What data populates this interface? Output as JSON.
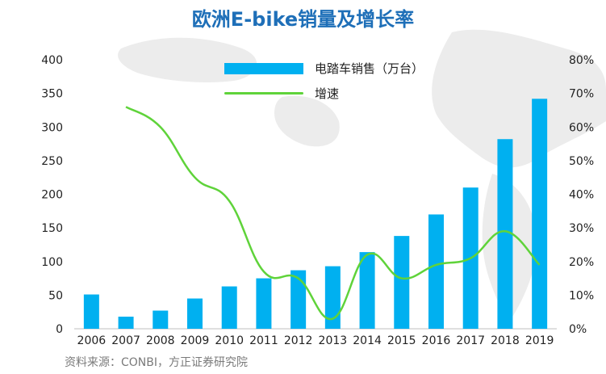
{
  "title": "欧洲E-bike销量及增长率",
  "source": "资料来源：CONBI，方正证券研究院",
  "chart_data": {
    "type": "bar",
    "categories": [
      "2006",
      "2007",
      "2008",
      "2009",
      "2010",
      "2011",
      "2012",
      "2013",
      "2014",
      "2015",
      "2016",
      "2017",
      "2018",
      "2019"
    ],
    "series": [
      {
        "name": "电踏车销售（万台）",
        "type": "bar",
        "axis": "left",
        "color": "#00b0f0",
        "values": [
          51,
          18,
          27,
          45,
          63,
          75,
          87,
          93,
          114,
          138,
          170,
          210,
          282,
          342
        ]
      },
      {
        "name": "增速",
        "type": "line",
        "axis": "right",
        "color": "#5fd33a",
        "values": [
          null,
          0.66,
          0.6,
          0.45,
          0.38,
          0.17,
          0.15,
          0.03,
          0.22,
          0.15,
          0.19,
          0.21,
          0.29,
          0.19
        ]
      }
    ],
    "left_axis": {
      "ylim": [
        0,
        400
      ],
      "ticks": [
        "0",
        "50",
        "100",
        "150",
        "200",
        "250",
        "300",
        "350",
        "400"
      ]
    },
    "right_axis": {
      "ylim": [
        0,
        0.8
      ],
      "ticks": [
        "0%",
        "10%",
        "20%",
        "30%",
        "40%",
        "50%",
        "60%",
        "70%",
        "80%"
      ]
    },
    "legend": {
      "placement": "top-center"
    },
    "grid": false
  }
}
